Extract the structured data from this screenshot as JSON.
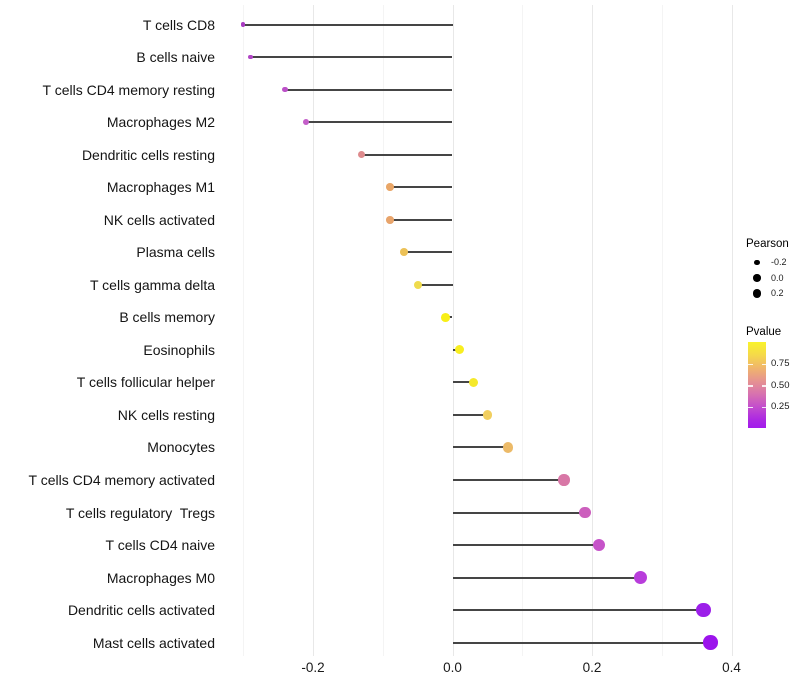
{
  "chart_data": {
    "type": "scatter",
    "variant": "lollipop",
    "orientation": "horizontal",
    "title": "",
    "xlabel": "",
    "ylabel": "",
    "categories": [
      "T cells CD8",
      "B cells naive",
      "T cells CD4 memory resting",
      "Macrophages M2",
      "Dendritic cells resting",
      "Macrophages M1",
      "NK cells activated",
      "Plasma cells",
      "T cells gamma delta",
      "B cells memory",
      "Eosinophils",
      "T cells follicular helper",
      "NK cells resting",
      "Monocytes",
      "T cells CD4 memory activated",
      "T cells regulatory  Tregs",
      "T cells CD4 naive",
      "Macrophages M0",
      "Dendritic cells activated",
      "Mast cells activated"
    ],
    "series": [
      {
        "name": "Pearson",
        "values": [
          -0.3,
          -0.29,
          -0.24,
          -0.21,
          -0.13,
          -0.09,
          -0.09,
          -0.07,
          -0.05,
          -0.01,
          0.01,
          0.03,
          0.05,
          0.08,
          0.16,
          0.19,
          0.21,
          0.27,
          0.36,
          0.37
        ]
      }
    ],
    "point_colors": [
      "#A93BC2",
      "#B145C5",
      "#BC50C8",
      "#C45FC9",
      "#DE8B8D",
      "#E9A667",
      "#E8A46B",
      "#ECC157",
      "#EFDB4D",
      "#F8EF17",
      "#F8EE20",
      "#F5E92B",
      "#F1CF60",
      "#ECBA68",
      "#D877A6",
      "#CC5FBD",
      "#C653C9",
      "#B83DDB",
      "#9C1FE9",
      "#9C14EC"
    ],
    "point_radii": [
      2.2,
      2.3,
      2.7,
      2.9,
      3.5,
      3.8,
      3.8,
      3.9,
      4.1,
      4.4,
      4.5,
      4.7,
      4.8,
      5.1,
      5.7,
      5.9,
      6.0,
      6.5,
      7.2,
      7.2
    ],
    "baseline": 0.0,
    "xlim": [
      -0.33,
      0.405
    ],
    "x_ticks": {
      "values": [
        -0.2,
        0.0,
        0.2,
        0.4
      ],
      "labels": [
        "-0.2",
        "0.0",
        "0.2",
        "0.4"
      ]
    },
    "grid": {
      "major_values": [
        -0.2,
        0.0,
        0.2,
        0.4
      ],
      "minor_values": [
        -0.3,
        -0.1,
        0.1,
        0.3
      ],
      "major_color": "#e8e8e8",
      "minor_color": "#f4f4f4"
    },
    "legend_size": {
      "title": "Pearson",
      "dot_color": "#000000",
      "entries": [
        {
          "label": "-0.2",
          "r": 2.7
        },
        {
          "label": "0.0",
          "r": 3.7
        },
        {
          "label": "0.2",
          "r": 4.4
        }
      ]
    },
    "legend_color": {
      "title": "Pvalue",
      "ticks": [
        {
          "label": "0.75",
          "value": 0.75
        },
        {
          "label": "0.50",
          "value": 0.5
        },
        {
          "label": "0.25",
          "value": 0.25
        }
      ],
      "range": [
        0.0,
        1.0
      ],
      "gradient_stops": [
        {
          "pos": 0.0,
          "color": "#F9F32B"
        },
        {
          "pos": 0.15,
          "color": "#F5D94A"
        },
        {
          "pos": 0.3,
          "color": "#F0B56B"
        },
        {
          "pos": 0.45,
          "color": "#E69390"
        },
        {
          "pos": 0.6,
          "color": "#D873AE"
        },
        {
          "pos": 0.75,
          "color": "#C44ECC"
        },
        {
          "pos": 0.9,
          "color": "#AC29E2"
        },
        {
          "pos": 1.0,
          "color": "#A21BEC"
        }
      ]
    },
    "stem_color": "#454545",
    "background_color": "#ffffff"
  }
}
